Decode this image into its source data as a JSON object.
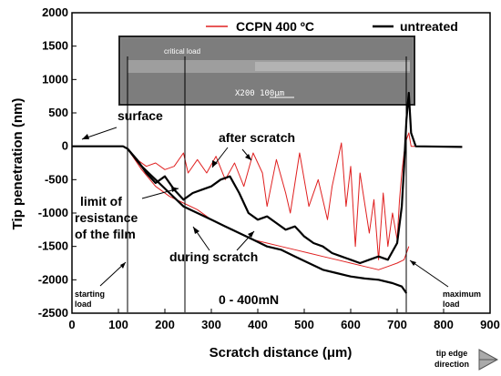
{
  "chart_data": {
    "type": "line",
    "xlabel": "Scratch distance (μm)",
    "ylabel": "Tip penetration (nm)",
    "xlim": [
      0,
      900
    ],
    "ylim": [
      -2500,
      2000
    ],
    "x_ticks": [
      0,
      100,
      200,
      300,
      400,
      500,
      600,
      700,
      800,
      900
    ],
    "y_ticks": [
      2000,
      1500,
      1000,
      500,
      0,
      -500,
      -1000,
      -1500,
      -2000,
      -2500
    ],
    "x_tick_labels": [
      "0",
      "100",
      "200",
      "300",
      "400",
      "500",
      "600",
      "700",
      "800",
      "900"
    ],
    "y_tick_labels": [
      "2000",
      "1500",
      "1000",
      "500",
      "0",
      "-500",
      "-1000",
      "-1500",
      "-2000",
      "-2500"
    ],
    "legend_position": "top-right",
    "series": [
      {
        "name": "CCPN 400 ºC",
        "color": "#e02020",
        "curves": [
          [
            [
              0,
              0
            ],
            [
              60,
              0
            ],
            [
              110,
              -5
            ],
            [
              120,
              -40
            ],
            [
              140,
              -200
            ],
            [
              160,
              -300
            ],
            [
              180,
              -250
            ],
            [
              200,
              -350
            ],
            [
              220,
              -300
            ],
            [
              240,
              -100
            ],
            [
              250,
              -400
            ],
            [
              270,
              -200
            ],
            [
              290,
              -400
            ],
            [
              310,
              -150
            ],
            [
              330,
              -500
            ],
            [
              350,
              -250
            ],
            [
              370,
              -600
            ],
            [
              390,
              -100
            ],
            [
              410,
              -400
            ],
            [
              420,
              -900
            ],
            [
              440,
              -200
            ],
            [
              460,
              -700
            ],
            [
              470,
              -1000
            ],
            [
              490,
              -100
            ],
            [
              510,
              -900
            ],
            [
              530,
              -500
            ],
            [
              550,
              -1100
            ],
            [
              560,
              -600
            ],
            [
              580,
              50
            ],
            [
              590,
              -900
            ],
            [
              600,
              -300
            ],
            [
              610,
              -1500
            ],
            [
              620,
              -400
            ],
            [
              640,
              -1300
            ],
            [
              650,
              -800
            ],
            [
              660,
              -1700
            ],
            [
              670,
              -700
            ],
            [
              680,
              -1500
            ],
            [
              690,
              -1000
            ],
            [
              700,
              -1400
            ],
            [
              705,
              -800
            ],
            [
              710,
              -400
            ],
            [
              715,
              -100
            ],
            [
              720,
              100
            ],
            [
              725,
              200
            ],
            [
              730,
              0
            ],
            [
              760,
              0
            ],
            [
              840,
              -10
            ]
          ],
          [
            [
              120,
              -40
            ],
            [
              150,
              -350
            ],
            [
              180,
              -600
            ],
            [
              210,
              -750
            ],
            [
              240,
              -850
            ],
            [
              270,
              -950
            ],
            [
              300,
              -1100
            ],
            [
              330,
              -1200
            ],
            [
              360,
              -1300
            ],
            [
              390,
              -1400
            ],
            [
              420,
              -1450
            ],
            [
              450,
              -1500
            ],
            [
              480,
              -1550
            ],
            [
              510,
              -1600
            ],
            [
              540,
              -1650
            ],
            [
              570,
              -1700
            ],
            [
              600,
              -1750
            ],
            [
              630,
              -1800
            ],
            [
              660,
              -1850
            ],
            [
              680,
              -1800
            ],
            [
              700,
              -1750
            ],
            [
              715,
              -1700
            ],
            [
              725,
              -1500
            ]
          ]
        ]
      },
      {
        "name": "untreated",
        "color": "#000000",
        "curves": [
          [
            [
              0,
              0
            ],
            [
              60,
              0
            ],
            [
              110,
              0
            ],
            [
              120,
              -40
            ],
            [
              140,
              -200
            ],
            [
              160,
              -400
            ],
            [
              180,
              -550
            ],
            [
              200,
              -450
            ],
            [
              220,
              -650
            ],
            [
              240,
              -800
            ],
            [
              260,
              -700
            ],
            [
              280,
              -650
            ],
            [
              300,
              -600
            ],
            [
              320,
              -500
            ],
            [
              340,
              -450
            ],
            [
              360,
              -700
            ],
            [
              380,
              -1000
            ],
            [
              400,
              -1100
            ],
            [
              420,
              -1050
            ],
            [
              440,
              -1150
            ],
            [
              460,
              -1250
            ],
            [
              480,
              -1200
            ],
            [
              500,
              -1350
            ],
            [
              520,
              -1450
            ],
            [
              540,
              -1500
            ],
            [
              560,
              -1600
            ],
            [
              580,
              -1650
            ],
            [
              600,
              -1700
            ],
            [
              620,
              -1750
            ],
            [
              640,
              -1700
            ],
            [
              660,
              -1650
            ],
            [
              680,
              -1700
            ],
            [
              700,
              -1450
            ],
            [
              710,
              -900
            ],
            [
              715,
              -300
            ],
            [
              720,
              400
            ],
            [
              725,
              800
            ],
            [
              730,
              200
            ],
            [
              740,
              0
            ],
            [
              840,
              -10
            ]
          ],
          [
            [
              120,
              -40
            ],
            [
              150,
              -300
            ],
            [
              180,
              -500
            ],
            [
              210,
              -700
            ],
            [
              240,
              -900
            ],
            [
              270,
              -1000
            ],
            [
              300,
              -1100
            ],
            [
              330,
              -1200
            ],
            [
              360,
              -1300
            ],
            [
              390,
              -1400
            ],
            [
              420,
              -1500
            ],
            [
              450,
              -1550
            ],
            [
              480,
              -1650
            ],
            [
              510,
              -1750
            ],
            [
              540,
              -1850
            ],
            [
              570,
              -1900
            ],
            [
              600,
              -1950
            ],
            [
              630,
              -1980
            ],
            [
              660,
              -2000
            ],
            [
              690,
              -2050
            ],
            [
              710,
              -2100
            ],
            [
              720,
              -2200
            ]
          ]
        ]
      }
    ],
    "annotations": {
      "surface": "surface",
      "after_scratch": "after scratch",
      "limit_line1": "limit of",
      "limit_line2": "resistance",
      "limit_line3": "of the film",
      "during_scratch": "during scratch",
      "load_range": "0 - 400mN",
      "starting_load_line1": "starting",
      "starting_load_line2": "load",
      "maximum_load_line1": "maximum",
      "maximum_load_line2": "load",
      "tip_edge_line1": "tip edge",
      "tip_edge_line2": "direction",
      "critical_load": "critical load",
      "inset_scale": "X200  100μm"
    }
  }
}
